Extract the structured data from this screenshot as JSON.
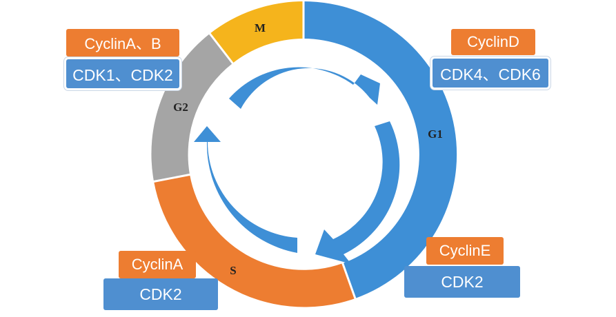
{
  "phases": {
    "m": {
      "label": "M",
      "color": "#f5b41c"
    },
    "g1": {
      "label": "G1",
      "color": "#3e8fd6"
    },
    "s": {
      "label": "S",
      "color": "#ed7d31"
    },
    "g2": {
      "label": "G2",
      "color": "#a5a5a5"
    }
  },
  "arrow_color": "#3e8fd6",
  "tags": {
    "g2": {
      "cyclin": "CyclinA、B",
      "cdk": "CDK1、CDK2"
    },
    "g1_start": {
      "cyclin": "CyclinD",
      "cdk": "CDK4、CDK6"
    },
    "g1_end": {
      "cyclin": "CyclinE",
      "cdk": "CDK2"
    },
    "s": {
      "cyclin": "CyclinA",
      "cdk": "CDK2"
    }
  }
}
